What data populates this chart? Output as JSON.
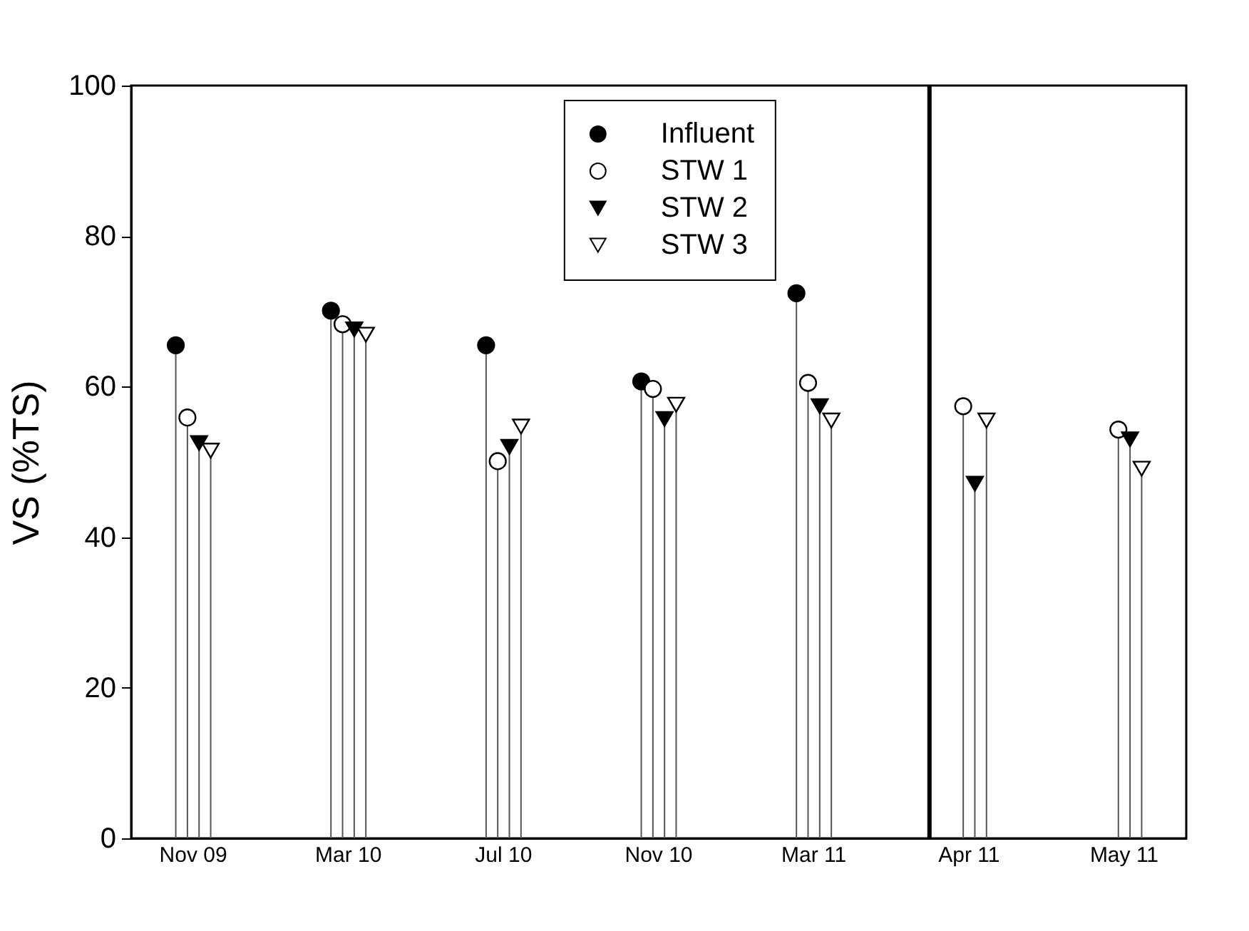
{
  "chart_data": {
    "type": "lollipop",
    "ylabel": "VS (%TS)",
    "categories": [
      "Nov 09",
      "Mar 10",
      "Jul 10",
      "Nov 10",
      "Mar 11",
      "Apr 11",
      "May 11"
    ],
    "series": [
      {
        "name": "Influent",
        "color": "#000000",
        "marker": "circle",
        "values": [
          65.5,
          70.1,
          65.5,
          60.7,
          72.4,
          null,
          null
        ]
      },
      {
        "name": "STW 1",
        "color": "#ffffff",
        "marker": "circle",
        "values": [
          55.9,
          68.3,
          50.1,
          59.7,
          60.5,
          57.4,
          54.3
        ]
      },
      {
        "name": "STW 2",
        "color": "#000000",
        "marker": "triangle",
        "values": [
          52.5,
          67.6,
          52.0,
          55.7,
          57.4,
          47.1,
          53.0
        ]
      },
      {
        "name": "STW 3",
        "color": "#ffffff",
        "marker": "triangle",
        "values": [
          51.5,
          66.9,
          54.7,
          57.6,
          55.5,
          55.5,
          49.1
        ]
      }
    ],
    "ylim": [
      0,
      100
    ],
    "yticks": [
      0,
      20,
      40,
      60,
      80,
      100
    ],
    "ref_lines": [
      {
        "axis": "x",
        "value": "Apr 11",
        "color": "#000000"
      }
    ],
    "legend": "top",
    "grid": false
  }
}
